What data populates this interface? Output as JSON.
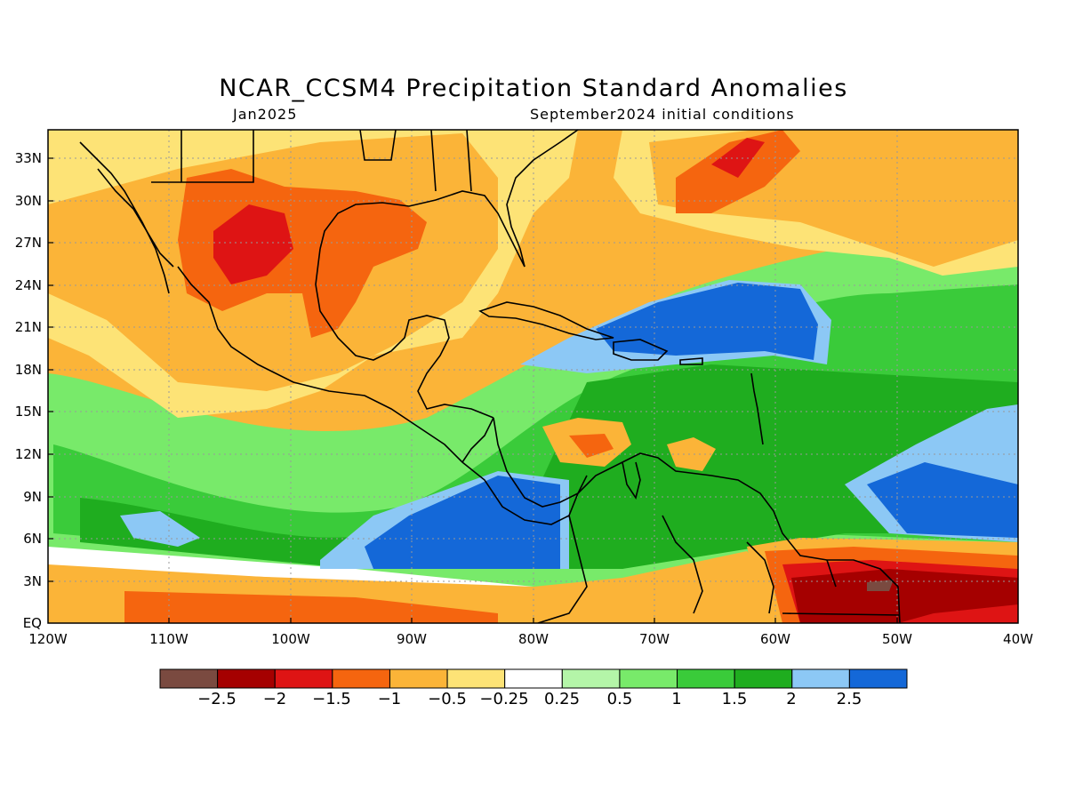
{
  "map": {
    "title": "NCAR_CCSM4 Precipitation Standard Anomalies",
    "valid_month": "Jan2025",
    "init_label": "September2024 initial conditions",
    "lat_labels": [
      "33N",
      "30N",
      "27N",
      "24N",
      "21N",
      "18N",
      "15N",
      "12N",
      "9N",
      "6N",
      "3N",
      "EQ"
    ],
    "lon_labels": [
      "120W",
      "110W",
      "100W",
      "90W",
      "80W",
      "70W",
      "60W",
      "50W",
      "40W"
    ],
    "extent": {
      "lon_min": -120,
      "lon_max": -40,
      "lat_min": 0,
      "lat_max": 35
    }
  },
  "colorbar": {
    "labels": [
      "−2.5",
      "−2",
      "−1.5",
      "−1",
      "−0.5",
      "−0.25",
      "0.25",
      "0.5",
      "1",
      "1.5",
      "2",
      "2.5"
    ],
    "colors": [
      "#7a4a40",
      "#a50000",
      "#de1414",
      "#f5650f",
      "#fbb438",
      "#fde376",
      "#ffffff",
      "#b4f5a8",
      "#78ea6a",
      "#3acb3a",
      "#1fad1f",
      "#8cc8f5",
      "#1468d8"
    ]
  }
}
